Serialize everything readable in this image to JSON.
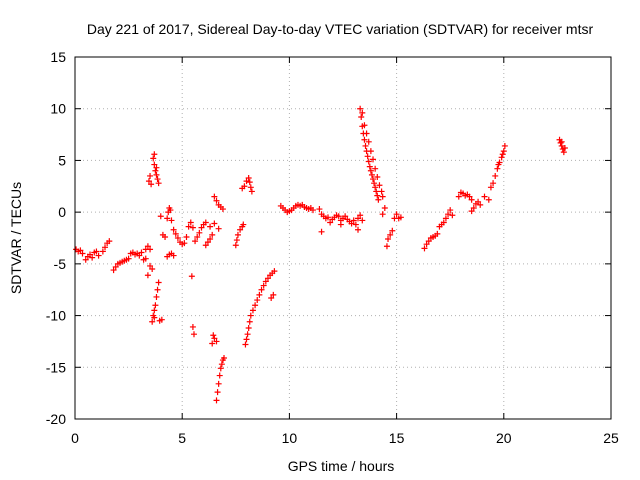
{
  "chart_data": {
    "type": "scatter",
    "title": "Day 221 of 2017, Sidereal Day-to-day VTEC variation (SDTVAR) for receiver mtsr",
    "xlabel": "GPS time / hours",
    "ylabel": "SDTVAR / TECUs",
    "xlim": [
      0,
      25
    ],
    "ylim": [
      -20,
      15
    ],
    "xticks": [
      0,
      5,
      10,
      15,
      20,
      25
    ],
    "yticks": [
      -20,
      -15,
      -10,
      -5,
      0,
      5,
      10,
      15
    ],
    "grid": true,
    "marker": "+",
    "color": "#ff0000",
    "series": [
      {
        "name": "SDTVAR",
        "points": [
          [
            0.05,
            -3.6
          ],
          [
            0.15,
            -3.8
          ],
          [
            0.25,
            -3.7
          ],
          [
            0.35,
            -4.0
          ],
          [
            0.5,
            -4.6
          ],
          [
            0.6,
            -4.3
          ],
          [
            0.7,
            -4.1
          ],
          [
            0.8,
            -4.4
          ],
          [
            0.9,
            -3.9
          ],
          [
            1.0,
            -3.8
          ],
          [
            1.1,
            -4.2
          ],
          [
            1.3,
            -3.8
          ],
          [
            1.4,
            -3.4
          ],
          [
            1.5,
            -3.0
          ],
          [
            1.6,
            -2.8
          ],
          [
            1.8,
            -5.6
          ],
          [
            1.9,
            -5.3
          ],
          [
            2.0,
            -5.0
          ],
          [
            2.1,
            -4.9
          ],
          [
            2.2,
            -4.8
          ],
          [
            2.3,
            -4.7
          ],
          [
            2.4,
            -4.6
          ],
          [
            2.5,
            -4.5
          ],
          [
            2.6,
            -4.0
          ],
          [
            2.7,
            -3.9
          ],
          [
            2.8,
            -4.1
          ],
          [
            2.9,
            -4.0
          ],
          [
            3.0,
            -4.2
          ],
          [
            3.1,
            -3.9
          ],
          [
            3.2,
            -4.6
          ],
          [
            3.3,
            -3.6
          ],
          [
            3.4,
            -3.3
          ],
          [
            3.5,
            -3.6
          ],
          [
            3.4,
            -6.1
          ],
          [
            3.5,
            -5.2
          ],
          [
            3.6,
            -5.5
          ],
          [
            3.3,
            -4.5
          ],
          [
            3.45,
            3.0
          ],
          [
            3.55,
            2.7
          ],
          [
            3.5,
            3.5
          ],
          [
            3.65,
            5.2
          ],
          [
            3.7,
            4.6
          ],
          [
            3.75,
            4.0
          ],
          [
            3.8,
            3.6
          ],
          [
            3.85,
            3.2
          ],
          [
            3.9,
            2.8
          ],
          [
            3.7,
            5.6
          ],
          [
            3.8,
            4.3
          ],
          [
            3.6,
            -10.6
          ],
          [
            3.65,
            -10.0
          ],
          [
            3.7,
            -9.5
          ],
          [
            3.75,
            -9.0
          ],
          [
            3.8,
            -8.2
          ],
          [
            3.85,
            -7.5
          ],
          [
            3.9,
            -6.8
          ],
          [
            3.7,
            -10.2
          ],
          [
            3.95,
            -10.5
          ],
          [
            4.05,
            -10.4
          ],
          [
            4.0,
            -0.4
          ],
          [
            4.1,
            -2.2
          ],
          [
            4.2,
            -2.4
          ],
          [
            4.3,
            -0.6
          ],
          [
            4.35,
            0.0
          ],
          [
            4.4,
            0.4
          ],
          [
            4.45,
            0.2
          ],
          [
            4.5,
            -0.8
          ],
          [
            4.6,
            -1.7
          ],
          [
            4.3,
            -4.3
          ],
          [
            4.4,
            -4.1
          ],
          [
            4.5,
            -4.0
          ],
          [
            4.6,
            -4.2
          ],
          [
            4.7,
            -2.1
          ],
          [
            4.8,
            -2.5
          ],
          [
            4.9,
            -2.9
          ],
          [
            5.0,
            -3.1
          ],
          [
            5.1,
            -3.0
          ],
          [
            5.2,
            -2.4
          ],
          [
            5.3,
            -1.4
          ],
          [
            5.4,
            -1.0
          ],
          [
            5.5,
            -1.5
          ],
          [
            5.45,
            -6.2
          ],
          [
            5.5,
            -11.1
          ],
          [
            5.55,
            -11.8
          ],
          [
            5.6,
            -2.8
          ],
          [
            5.7,
            -2.4
          ],
          [
            5.8,
            -2.0
          ],
          [
            5.9,
            -1.5
          ],
          [
            6.0,
            -1.2
          ],
          [
            6.1,
            -1.0
          ],
          [
            6.3,
            -1.4
          ],
          [
            6.5,
            -1.1
          ],
          [
            6.7,
            -1.6
          ],
          [
            6.1,
            -3.2
          ],
          [
            6.2,
            -2.9
          ],
          [
            6.3,
            -2.6
          ],
          [
            6.4,
            -2.2
          ],
          [
            6.5,
            1.5
          ],
          [
            6.6,
            1.1
          ],
          [
            6.7,
            0.7
          ],
          [
            6.8,
            0.5
          ],
          [
            6.9,
            0.3
          ],
          [
            6.4,
            -12.7
          ],
          [
            6.5,
            -12.2
          ],
          [
            6.6,
            -12.5
          ],
          [
            6.45,
            -11.9
          ],
          [
            6.6,
            -18.2
          ],
          [
            6.65,
            -17.4
          ],
          [
            6.7,
            -16.6
          ],
          [
            6.75,
            -15.8
          ],
          [
            6.8,
            -15.1
          ],
          [
            6.85,
            -14.7
          ],
          [
            6.9,
            -14.3
          ],
          [
            6.95,
            -14.1
          ],
          [
            7.5,
            -3.2
          ],
          [
            7.55,
            -2.7
          ],
          [
            7.6,
            -2.2
          ],
          [
            7.7,
            -1.7
          ],
          [
            7.8,
            -1.4
          ],
          [
            7.85,
            -1.2
          ],
          [
            7.8,
            2.3
          ],
          [
            7.9,
            2.5
          ],
          [
            8.0,
            3.0
          ],
          [
            8.1,
            3.3
          ],
          [
            8.15,
            2.9
          ],
          [
            8.2,
            2.4
          ],
          [
            8.25,
            2.0
          ],
          [
            7.95,
            -12.8
          ],
          [
            8.0,
            -12.3
          ],
          [
            8.05,
            -11.8
          ],
          [
            8.1,
            -11.2
          ],
          [
            8.15,
            -10.6
          ],
          [
            8.2,
            -10.0
          ],
          [
            8.3,
            -9.5
          ],
          [
            8.4,
            -9.0
          ],
          [
            8.5,
            -8.5
          ],
          [
            8.6,
            -8.0
          ],
          [
            8.7,
            -7.5
          ],
          [
            8.8,
            -7.1
          ],
          [
            8.9,
            -6.7
          ],
          [
            9.0,
            -6.4
          ],
          [
            9.1,
            -6.1
          ],
          [
            9.2,
            -5.9
          ],
          [
            9.3,
            -5.7
          ],
          [
            9.15,
            -8.3
          ],
          [
            9.25,
            -8.0
          ],
          [
            9.6,
            0.6
          ],
          [
            9.7,
            0.4
          ],
          [
            9.8,
            0.2
          ],
          [
            9.9,
            0.0
          ],
          [
            10.0,
            0.1
          ],
          [
            10.1,
            0.2
          ],
          [
            10.2,
            0.4
          ],
          [
            10.3,
            0.6
          ],
          [
            10.4,
            0.7
          ],
          [
            10.5,
            0.6
          ],
          [
            10.6,
            0.7
          ],
          [
            10.7,
            0.5
          ],
          [
            10.8,
            0.4
          ],
          [
            10.9,
            0.3
          ],
          [
            11.0,
            0.4
          ],
          [
            11.1,
            0.2
          ],
          [
            11.4,
            0.3
          ],
          [
            11.5,
            -0.2
          ],
          [
            11.6,
            -0.4
          ],
          [
            11.7,
            -0.6
          ],
          [
            11.8,
            -0.5
          ],
          [
            11.9,
            -1.0
          ],
          [
            12.0,
            -0.7
          ],
          [
            12.1,
            -0.5
          ],
          [
            12.2,
            -0.3
          ],
          [
            12.3,
            -0.4
          ],
          [
            12.4,
            -0.8
          ],
          [
            12.5,
            -0.6
          ],
          [
            12.6,
            -0.4
          ],
          [
            12.7,
            -0.7
          ],
          [
            12.8,
            -0.9
          ],
          [
            12.9,
            -1.1
          ],
          [
            13.0,
            -0.8
          ],
          [
            13.1,
            -1.2
          ],
          [
            13.2,
            -0.6
          ],
          [
            13.3,
            -0.3
          ],
          [
            13.4,
            -0.8
          ],
          [
            11.5,
            -1.9
          ],
          [
            12.4,
            -1.2
          ],
          [
            13.2,
            -1.7
          ],
          [
            13.3,
            10.0
          ],
          [
            13.35,
            9.2
          ],
          [
            13.4,
            8.3
          ],
          [
            13.45,
            7.6
          ],
          [
            13.5,
            7.0
          ],
          [
            13.55,
            6.4
          ],
          [
            13.6,
            5.9
          ],
          [
            13.65,
            5.4
          ],
          [
            13.7,
            4.9
          ],
          [
            13.75,
            4.4
          ],
          [
            13.8,
            4.0
          ],
          [
            13.85,
            3.6
          ],
          [
            13.9,
            3.2
          ],
          [
            13.95,
            2.8
          ],
          [
            14.0,
            2.4
          ],
          [
            14.05,
            2.0
          ],
          [
            14.1,
            1.6
          ],
          [
            14.15,
            1.2
          ],
          [
            13.4,
            9.6
          ],
          [
            13.5,
            8.4
          ],
          [
            13.6,
            7.6
          ],
          [
            13.7,
            6.8
          ],
          [
            13.8,
            5.9
          ],
          [
            13.9,
            5.1
          ],
          [
            14.0,
            4.2
          ],
          [
            14.1,
            3.4
          ],
          [
            14.2,
            2.6
          ],
          [
            14.3,
            2.0
          ],
          [
            14.35,
            1.5
          ],
          [
            14.35,
            -0.2
          ],
          [
            14.45,
            0.4
          ],
          [
            14.55,
            -3.3
          ],
          [
            14.6,
            -2.6
          ],
          [
            14.7,
            -2.2
          ],
          [
            14.8,
            -1.8
          ],
          [
            14.9,
            -0.6
          ],
          [
            15.0,
            -0.2
          ],
          [
            15.1,
            -0.6
          ],
          [
            15.2,
            -0.5
          ],
          [
            16.3,
            -3.5
          ],
          [
            16.4,
            -3.1
          ],
          [
            16.5,
            -2.8
          ],
          [
            16.6,
            -2.5
          ],
          [
            16.7,
            -2.4
          ],
          [
            16.8,
            -2.3
          ],
          [
            16.9,
            -2.1
          ],
          [
            17.0,
            -1.4
          ],
          [
            17.1,
            -1.2
          ],
          [
            17.2,
            -1.0
          ],
          [
            17.3,
            -0.6
          ],
          [
            17.4,
            -0.2
          ],
          [
            17.5,
            0.2
          ],
          [
            17.6,
            -0.3
          ],
          [
            17.9,
            1.5
          ],
          [
            18.0,
            1.9
          ],
          [
            18.1,
            1.8
          ],
          [
            18.2,
            1.6
          ],
          [
            18.3,
            1.7
          ],
          [
            18.4,
            1.5
          ],
          [
            18.5,
            1.2
          ],
          [
            18.5,
            0.1
          ],
          [
            18.6,
            0.4
          ],
          [
            18.7,
            0.8
          ],
          [
            18.8,
            1.0
          ],
          [
            18.9,
            0.7
          ],
          [
            19.1,
            1.5
          ],
          [
            19.3,
            1.2
          ],
          [
            19.4,
            2.4
          ],
          [
            19.5,
            2.8
          ],
          [
            19.6,
            3.5
          ],
          [
            19.7,
            4.2
          ],
          [
            19.8,
            4.8
          ],
          [
            19.9,
            5.3
          ],
          [
            20.0,
            5.9
          ],
          [
            20.05,
            6.4
          ],
          [
            19.75,
            4.6
          ],
          [
            19.95,
            5.6
          ],
          [
            22.6,
            7.0
          ],
          [
            22.65,
            6.7
          ],
          [
            22.7,
            6.4
          ],
          [
            22.75,
            6.1
          ],
          [
            22.8,
            5.8
          ],
          [
            22.85,
            6.2
          ],
          [
            22.7,
            6.8
          ]
        ]
      }
    ]
  }
}
